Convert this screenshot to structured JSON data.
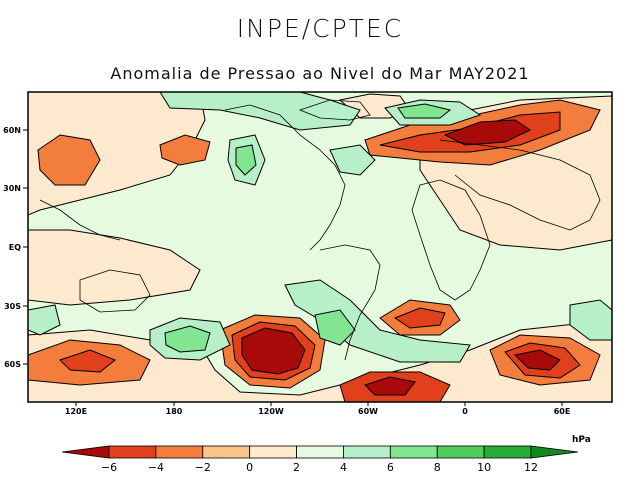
{
  "header": {
    "organization": "INPE/CPTEC",
    "title": "Anomalia de Pressao ao Nivel do Mar MAY2021"
  },
  "axes": {
    "lon_labels": [
      "120E",
      "180",
      "120W",
      "60W",
      "0",
      "60E"
    ],
    "lat_labels": [
      "60N",
      "30N",
      "EQ",
      "30S",
      "60S"
    ]
  },
  "colorbar": {
    "unit": "hPa",
    "levels": [
      "-6",
      "-4",
      "-2",
      "0",
      "2",
      "4",
      "6",
      "8",
      "10",
      "12"
    ],
    "colors": [
      "#a80a0a",
      "#e0401c",
      "#f37d3d",
      "#fbc58c",
      "#fde9cd",
      "#e6fae0",
      "#b6efc8",
      "#82e592",
      "#50cd5b",
      "#27ad35",
      "#10871f"
    ]
  },
  "map_colors": {
    "c_neg6": "#a80a0a",
    "c_neg4": "#e0401c",
    "c_neg2": "#f37d3d",
    "c_neg0": "#fbc58c",
    "c_0": "#fde9cd",
    "c_2": "#e6fae0",
    "c_4": "#b6efc8",
    "c_6": "#82e592",
    "c_8": "#50cd5b"
  }
}
